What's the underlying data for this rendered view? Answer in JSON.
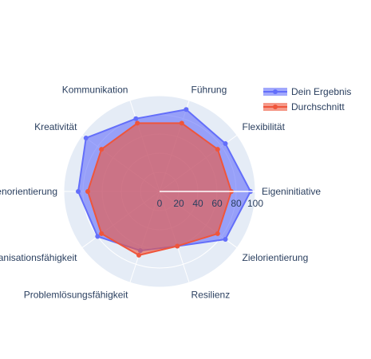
{
  "chart_data": {
    "type": "radar",
    "categories": [
      "Eigeninitiative",
      "Flexibilität",
      "Führung",
      "Kommunikation",
      "Kreativität",
      "Kundenorientierung",
      "Organisationsfähigkeit",
      "Problemlösungsfähigkeit",
      "Resilienz",
      "Zielorientierung"
    ],
    "series": [
      {
        "name": "Dein Ergebnis",
        "values": [
          95,
          85,
          90,
          80,
          95,
          85,
          80,
          65,
          60,
          85
        ],
        "color": "#636efa"
      },
      {
        "name": "Durchschnitt",
        "values": [
          75,
          75,
          75,
          75,
          75,
          75,
          75,
          70,
          60,
          75
        ],
        "color": "#ef553b"
      }
    ],
    "radial_ticks": [
      "0",
      "20",
      "40",
      "60",
      "80",
      "100"
    ],
    "radial_range": [
      0,
      100
    ],
    "grid": true,
    "legend_position": "top-right",
    "polar_background": "#e5ecf6"
  }
}
